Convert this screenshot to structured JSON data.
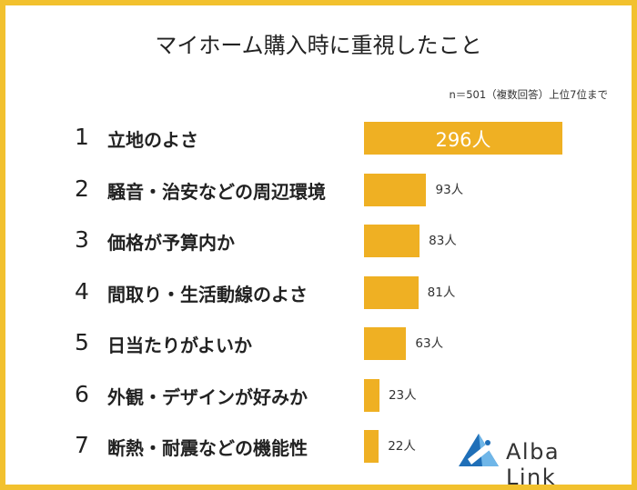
{
  "title": "マイホーム購入時に重視したこと",
  "note": "n＝501（複数回答）上位7位まで",
  "brand": "Alba Link",
  "colors": {
    "bar": "#efb023",
    "frame": "#f2c12e",
    "logo_blue": "#1f6fb8",
    "logo_light": "#6fb6e8"
  },
  "chart_data": {
    "type": "bar",
    "orientation": "horizontal",
    "categories": [
      "立地のよさ",
      "騒音・治安などの周辺環境",
      "価格が予算内か",
      "間取り・生活動線のよさ",
      "日当たりがよいか",
      "外観・デザインが好みか",
      "断熱・耐震などの機能性"
    ],
    "ranks": [
      "1",
      "2",
      "3",
      "4",
      "5",
      "6",
      "7"
    ],
    "values": [
      296,
      93,
      83,
      81,
      63,
      23,
      22
    ],
    "value_labels": [
      "296人",
      "93人",
      "83人",
      "81人",
      "63人",
      "23人",
      "22人"
    ],
    "xlim": [
      0,
      296
    ]
  }
}
